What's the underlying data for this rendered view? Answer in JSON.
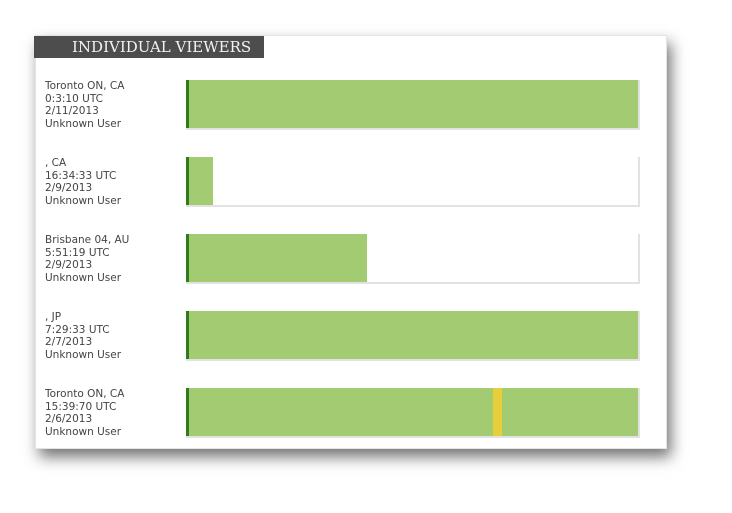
{
  "header": {
    "title": "INDIVIDUAL VIEWERS"
  },
  "viewers": [
    {
      "location": "Toronto ON, CA",
      "time": "0:3:10 UTC",
      "date": "2/11/2013",
      "user": "Unknown User",
      "watched": 100
    },
    {
      "location": ", CA",
      "time": "16:34:33 UTC",
      "date": "2/9/2013",
      "user": "Unknown User",
      "watched": 6
    },
    {
      "location": "Brisbane 04, AU",
      "time": "5:51:19 UTC",
      "date": "2/9/2013",
      "user": "Unknown User",
      "watched": 40
    },
    {
      "location": ", JP",
      "time": "7:29:33 UTC",
      "date": "2/7/2013",
      "user": "Unknown User",
      "watched": 100
    },
    {
      "location": "Toronto ON, CA",
      "time": "15:39:70 UTC",
      "date": "2/6/2013",
      "user": "Unknown User",
      "watched": 100,
      "highlight": [
        68,
        70
      ]
    }
  ],
  "scale": {
    "max": 100,
    "bar_color": "#a3cc72",
    "start_color": "#2e7d1a",
    "highlight_color": "#e8cf3a"
  }
}
